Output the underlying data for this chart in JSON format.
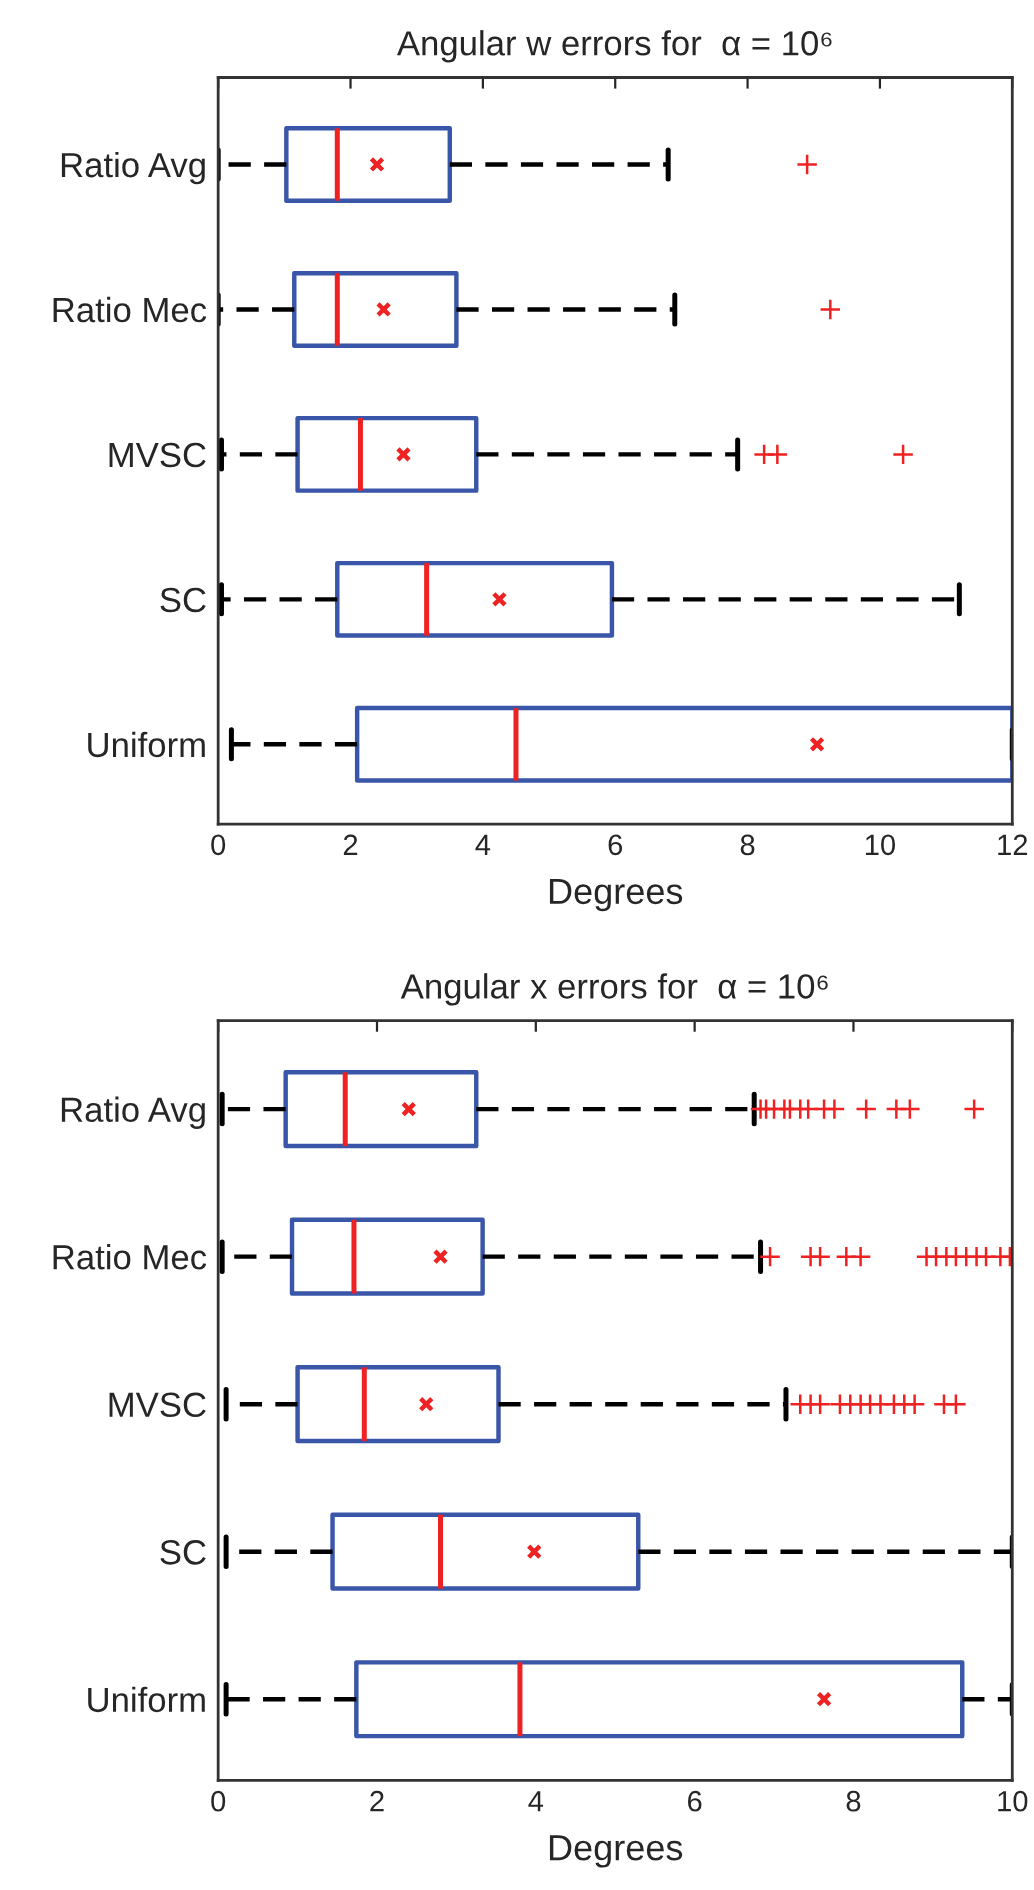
{
  "chart_data": [
    {
      "type": "box",
      "title": "Angular w errors for  α = 10⁶",
      "xlabel": "Degrees",
      "categories": [
        "Ratio Avg",
        "Ratio Mec",
        "MVSC",
        "SC",
        "Uniform"
      ],
      "orientation": "horizontal",
      "xlim": [
        0,
        12
      ],
      "xticks": [
        0,
        2,
        4,
        6,
        8,
        10,
        12
      ],
      "boxes": [
        {
          "low": 0,
          "q1": 1.03,
          "median": 1.8,
          "q3": 3.5,
          "high": 6.8,
          "mean": 2.4,
          "outliers": [
            8.9
          ]
        },
        {
          "low": 0,
          "q1": 1.15,
          "median": 1.8,
          "q3": 3.6,
          "high": 6.9,
          "mean": 2.5,
          "outliers": [
            9.25
          ]
        },
        {
          "low": 0.05,
          "q1": 1.2,
          "median": 2.15,
          "q3": 3.9,
          "high": 7.85,
          "mean": 2.8,
          "outliers": [
            8.25,
            8.45,
            10.35
          ]
        },
        {
          "low": 0.05,
          "q1": 1.8,
          "median": 3.15,
          "q3": 5.95,
          "high": 11.2,
          "mean": 4.25
        },
        {
          "low": 0.2,
          "q1": 2.1,
          "median": 4.5,
          "q3": 12,
          "high": 12,
          "mean": 9.05
        }
      ]
    },
    {
      "type": "box",
      "title": "Angular x errors for  α = 10⁶",
      "xlabel": "Degrees",
      "categories": [
        "Ratio Avg",
        "Ratio Mec",
        "MVSC",
        "SC",
        "Uniform"
      ],
      "orientation": "horizontal",
      "xlim": [
        0,
        10
      ],
      "xticks": [
        0,
        2,
        4,
        6,
        8,
        10
      ],
      "boxes": [
        {
          "low": 0.05,
          "q1": 0.85,
          "median": 1.6,
          "q3": 3.25,
          "high": 6.75,
          "mean": 2.4,
          "outliers": [
            6.83,
            6.9,
            7.0,
            7.13,
            7.2,
            7.33,
            7.43,
            7.63,
            7.76,
            8.16,
            8.54,
            8.71,
            9.52
          ]
        },
        {
          "low": 0.05,
          "q1": 0.93,
          "median": 1.71,
          "q3": 3.33,
          "high": 6.83,
          "mean": 2.8,
          "outliers": [
            6.95,
            7.46,
            7.58,
            7.91,
            8.09,
            8.92,
            9.04,
            9.17,
            9.29,
            9.42,
            9.55,
            9.67,
            9.85,
            9.97
          ]
        },
        {
          "low": 0.1,
          "q1": 1.0,
          "median": 1.84,
          "q3": 3.53,
          "high": 7.15,
          "mean": 2.62,
          "outliers": [
            7.33,
            7.46,
            7.58,
            7.83,
            7.96,
            8.09,
            8.21,
            8.34,
            8.51,
            8.64,
            8.77,
            9.14,
            9.29
          ]
        },
        {
          "low": 0.1,
          "q1": 1.44,
          "median": 2.8,
          "q3": 5.29,
          "high": 10,
          "mean": 3.98
        },
        {
          "low": 0.1,
          "q1": 1.74,
          "median": 3.8,
          "q3": 9.37,
          "high": 10,
          "mean": 7.63
        }
      ]
    }
  ]
}
